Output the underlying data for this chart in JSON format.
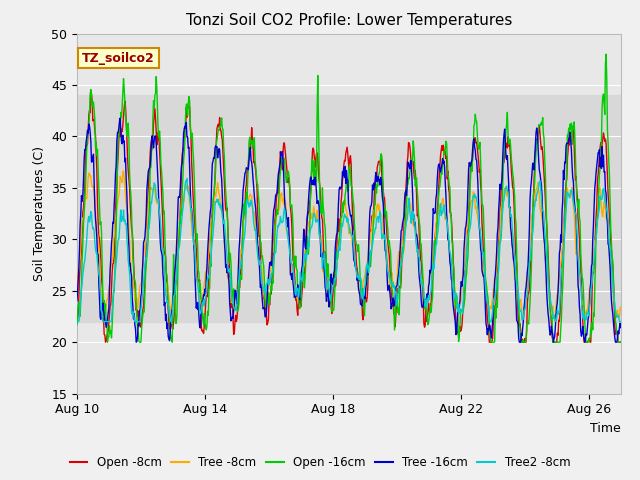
{
  "title": "Tonzi Soil CO2 Profile: Lower Temperatures",
  "xlabel": "Time",
  "ylabel": "Soil Temperatures (C)",
  "ylim": [
    15,
    50
  ],
  "yticks": [
    15,
    20,
    25,
    30,
    35,
    40,
    45,
    50
  ],
  "xtick_labels": [
    "Aug 10",
    "Aug 14",
    "Aug 18",
    "Aug 22",
    "Aug 26"
  ],
  "xtick_positions": [
    0,
    4,
    8,
    12,
    16
  ],
  "n_days": 17,
  "legend_labels": [
    "Open -8cm",
    "Tree -8cm",
    "Open -16cm",
    "Tree -16cm",
    "Tree2 -8cm"
  ],
  "line_colors": [
    "#dd0000",
    "#ffaa00",
    "#00cc00",
    "#0000cc",
    "#00cccc"
  ],
  "line_width": 1.0,
  "fig_bg_color": "#f0f0f0",
  "plot_bg_color": "#e8e8e8",
  "band_color": "#d8d8d8",
  "band_y1": 22,
  "band_y2": 44,
  "annotation_text": "TZ_soilco2",
  "annotation_bg": "#ffffcc",
  "annotation_border": "#cc8800",
  "annotation_text_color": "#990000"
}
